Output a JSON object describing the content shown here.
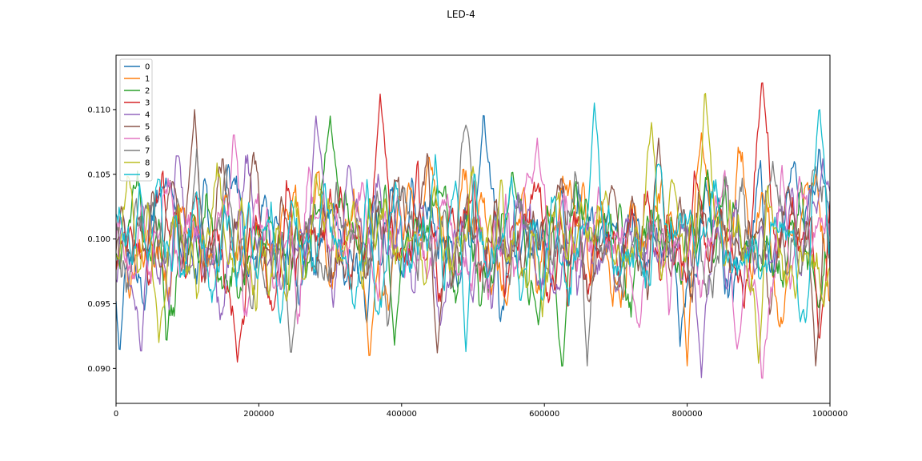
{
  "chart_data": {
    "type": "line",
    "title": "LED-4",
    "xlabel": "",
    "ylabel": "",
    "xlim": [
      0,
      1000000
    ],
    "ylim": [
      0.0873,
      0.1142
    ],
    "x_ticks": [
      0,
      200000,
      400000,
      600000,
      800000,
      1000000
    ],
    "x_tick_labels": [
      "0",
      "200000",
      "400000",
      "600000",
      "800000",
      "1000000"
    ],
    "y_ticks": [
      0.09,
      0.095,
      0.1,
      0.105,
      0.11
    ],
    "y_tick_labels": [
      "0.090",
      "0.095",
      "0.100",
      "0.105",
      "0.110"
    ],
    "grid": false,
    "legend_position": "top-left",
    "noise": {
      "mean": 0.1,
      "typical_range": [
        0.092,
        0.108
      ]
    },
    "series": [
      {
        "name": "0",
        "color": "#1f77b4",
        "peaks": [
          [
            515000,
            0.1102
          ],
          [
            985000,
            0.1075
          ]
        ],
        "troughs": [
          [
            5000,
            0.0908
          ],
          [
            790000,
            0.0917
          ]
        ]
      },
      {
        "name": "1",
        "color": "#ff7f0e",
        "peaks": [
          [
            438000,
            0.1065
          ],
          [
            820000,
            0.1082
          ]
        ],
        "troughs": [
          [
            355000,
            0.0903
          ],
          [
            800000,
            0.0902
          ]
        ]
      },
      {
        "name": "2",
        "color": "#2ca02c",
        "peaks": [
          [
            300000,
            0.1095
          ],
          [
            555000,
            0.1055
          ]
        ],
        "troughs": [
          [
            625000,
            0.0897
          ],
          [
            390000,
            0.0918
          ]
        ]
      },
      {
        "name": "3",
        "color": "#d62728",
        "peaks": [
          [
            370000,
            0.1112
          ],
          [
            905000,
            0.1126
          ]
        ],
        "troughs": [
          [
            170000,
            0.0905
          ],
          [
            985000,
            0.0918
          ]
        ]
      },
      {
        "name": "4",
        "color": "#9467bd",
        "peaks": [
          [
            280000,
            0.1095
          ],
          [
            990000,
            0.1062
          ]
        ],
        "troughs": [
          [
            35000,
            0.0907
          ],
          [
            820000,
            0.0893
          ]
        ]
      },
      {
        "name": "5",
        "color": "#8c564b",
        "peaks": [
          [
            110000,
            0.11
          ],
          [
            760000,
            0.1078
          ]
        ],
        "troughs": [
          [
            450000,
            0.0912
          ],
          [
            980000,
            0.0902
          ]
        ]
      },
      {
        "name": "6",
        "color": "#e377c2",
        "peaks": [
          [
            165000,
            0.1085
          ],
          [
            590000,
            0.1078
          ]
        ],
        "troughs": [
          [
            905000,
            0.0885
          ],
          [
            870000,
            0.0915
          ]
        ]
      },
      {
        "name": "7",
        "color": "#7f7f7f",
        "peaks": [
          [
            490000,
            0.1088
          ],
          [
            920000,
            0.106
          ]
        ],
        "troughs": [
          [
            245000,
            0.0907
          ],
          [
            660000,
            0.0902
          ]
        ]
      },
      {
        "name": "8",
        "color": "#bcbd22",
        "peaks": [
          [
            825000,
            0.112
          ],
          [
            750000,
            0.109
          ]
        ],
        "troughs": [
          [
            60000,
            0.092
          ],
          [
            900000,
            0.0904
          ]
        ]
      },
      {
        "name": "9",
        "color": "#17becf",
        "peaks": [
          [
            670000,
            0.1105
          ],
          [
            985000,
            0.1105
          ]
        ],
        "troughs": [
          [
            490000,
            0.0913
          ],
          [
            230000,
            0.0935
          ]
        ]
      }
    ]
  }
}
